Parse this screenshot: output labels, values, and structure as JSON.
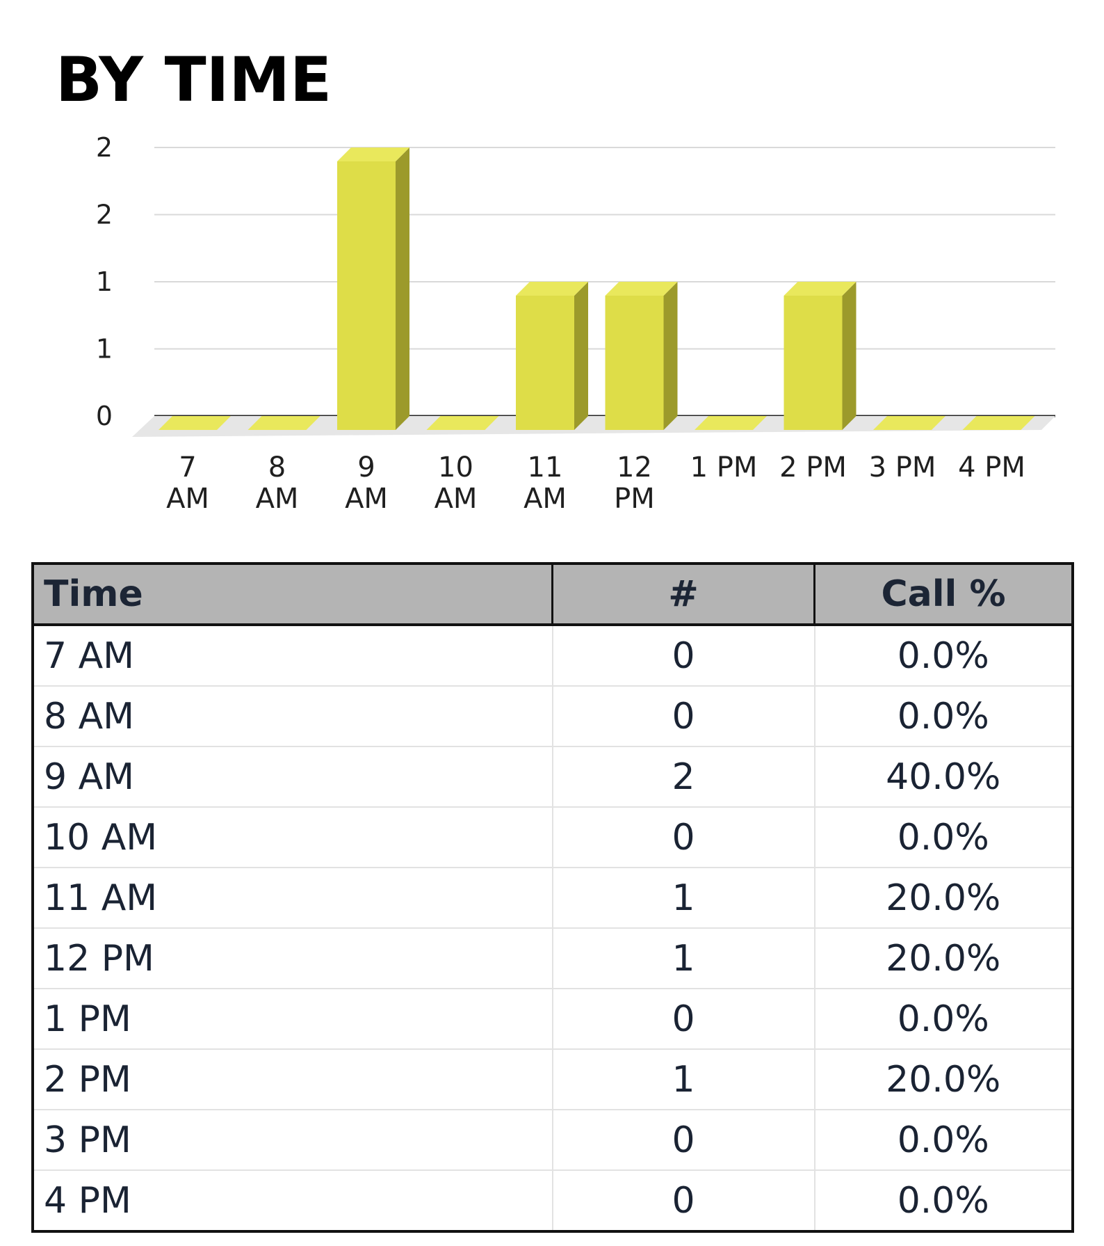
{
  "section_title": "BY TIME",
  "colors": {
    "bar_face": "#dedd48",
    "bar_side": "#9c9a2b",
    "bar_top": "#e9e85c",
    "floor": "#e6e6e6",
    "gridline": "#d9d9d9",
    "header_bg": "#b4b4b4"
  },
  "chart_data": {
    "type": "bar",
    "style": "3d-column",
    "categories": [
      "7 AM",
      "8 AM",
      "9 AM",
      "10 AM",
      "11 AM",
      "12 PM",
      "1 PM",
      "2 PM",
      "3 PM",
      "4 PM"
    ],
    "category_label_lines": [
      [
        "7",
        "AM"
      ],
      [
        "8",
        "AM"
      ],
      [
        "9",
        "AM"
      ],
      [
        "10",
        "AM"
      ],
      [
        "11",
        "AM"
      ],
      [
        "12",
        "PM"
      ],
      [
        "1 PM"
      ],
      [
        "2 PM"
      ],
      [
        "3 PM"
      ],
      [
        "4 PM"
      ]
    ],
    "values": [
      0,
      0,
      2,
      0,
      1,
      1,
      0,
      1,
      0,
      0
    ],
    "ylim": [
      0,
      2
    ],
    "yticks": [
      0,
      0.5,
      1,
      1.5,
      2
    ],
    "ytick_labels": [
      "0",
      "1",
      "1",
      "2",
      "2"
    ],
    "grid": true,
    "legend": "none",
    "title": "",
    "xlabel": "",
    "ylabel": ""
  },
  "table": {
    "headers": {
      "time": "Time",
      "count": "#",
      "pct": "Call %"
    },
    "rows": [
      {
        "time": "7 AM",
        "count": "0",
        "pct": "0.0%"
      },
      {
        "time": "8 AM",
        "count": "0",
        "pct": "0.0%"
      },
      {
        "time": "9 AM",
        "count": "2",
        "pct": "40.0%"
      },
      {
        "time": "10 AM",
        "count": "0",
        "pct": "0.0%"
      },
      {
        "time": "11 AM",
        "count": "1",
        "pct": "20.0%"
      },
      {
        "time": "12 PM",
        "count": "1",
        "pct": "20.0%"
      },
      {
        "time": "1 PM",
        "count": "0",
        "pct": "0.0%"
      },
      {
        "time": "2 PM",
        "count": "1",
        "pct": "20.0%"
      },
      {
        "time": "3 PM",
        "count": "0",
        "pct": "0.0%"
      },
      {
        "time": "4 PM",
        "count": "0",
        "pct": "0.0%"
      }
    ]
  }
}
